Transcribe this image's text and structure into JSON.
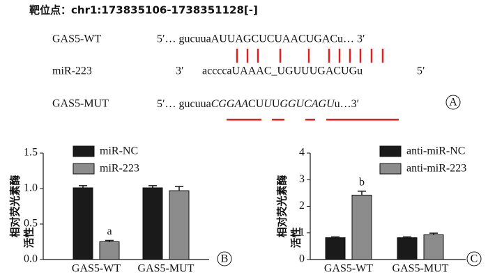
{
  "header": {
    "title": "靶位点：chr1:173835106-1738351128[-]",
    "panel": "A"
  },
  "rows": [
    {
      "label": "GAS5-WT",
      "sequence": "5′… gucuuaAUUAGCUCUAACUGACu… 3′"
    },
    {
      "label": "miR-223",
      "end_left": "3′",
      "sequence": "accccaUAAAC_UGUUUGACUGu",
      "end_right": "5′"
    },
    {
      "label": "GAS5-MUT",
      "prefix": "5′… gucuua",
      "parts": [
        {
          "text": "CGGA",
          "italic": true
        },
        {
          "text": "A",
          "italic": true
        },
        {
          "text": "CU",
          "italic": false
        },
        {
          "text": "U",
          "italic": true
        },
        {
          "text": "U",
          "italic": false
        },
        {
          "text": "GGUCAGU",
          "italic": true
        },
        {
          "text": "u",
          "italic": false
        }
      ],
      "suffix": "…3′"
    }
  ],
  "chart_data": [
    {
      "type": "bar",
      "panel": "B",
      "y_label": [
        "相对荧光素酶",
        "活性"
      ],
      "categories": [
        "GAS5-WT",
        "GAS5-MUT"
      ],
      "series": [
        {
          "name": "miR-NC",
          "color": "#1a1a1a",
          "values": [
            1.01,
            1.01
          ],
          "errors": [
            0.03,
            0.03
          ]
        },
        {
          "name": "miR-223",
          "color": "#8c8c8c",
          "values": [
            0.25,
            0.97
          ],
          "errors": [
            0.02,
            0.06
          ],
          "annotation": "a"
        }
      ],
      "ylim": [
        0,
        1.5
      ],
      "yticks": [
        {
          "value": 0,
          "label": "0.0"
        },
        0.5,
        {
          "value": 1,
          "label": "1.0"
        },
        1.5
      ]
    },
    {
      "type": "bar",
      "panel": "C",
      "y_label": [
        "相对荧光素酶",
        "活性"
      ],
      "categories": [
        "GAS5-WT",
        "GAS5-MUT"
      ],
      "series": [
        {
          "name": "anti-miR-NC",
          "color": "#1a1a1a",
          "values": [
            0.82,
            0.82
          ],
          "errors": [
            0.03,
            0.03
          ]
        },
        {
          "name": "anti-miR-223",
          "color": "#8c8c8c",
          "values": [
            2.42,
            0.93
          ],
          "errors": [
            0.15,
            0.06
          ],
          "annotation": "b"
        }
      ],
      "ylim": [
        0,
        4
      ],
      "yticks": [
        0,
        1,
        2,
        3,
        4
      ]
    }
  ]
}
